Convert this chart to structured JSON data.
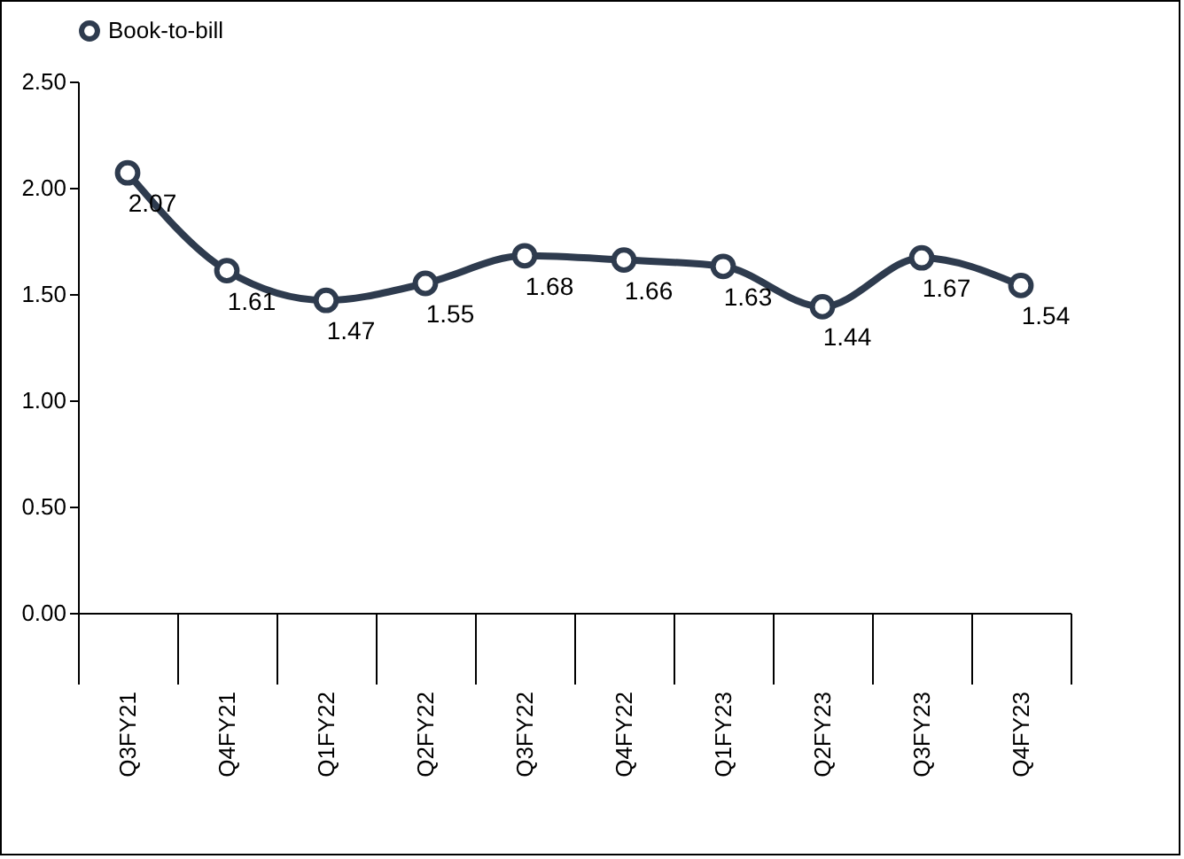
{
  "chart_data": {
    "type": "line",
    "categories": [
      "Q3FY21",
      "Q4FY21",
      "Q1FY22",
      "Q2FY22",
      "Q3FY22",
      "Q4FY22",
      "Q1FY23",
      "Q2FY23",
      "Q3FY23",
      "Q4FY23"
    ],
    "series": [
      {
        "name": "Book-to-bill",
        "color": "#2e3b4e",
        "values": [
          2.07,
          1.61,
          1.47,
          1.55,
          1.68,
          1.66,
          1.63,
          1.44,
          1.67,
          1.54
        ]
      }
    ],
    "ylim": [
      0,
      2.5
    ],
    "yticks": [
      {
        "value": 0,
        "label": "0.00"
      },
      {
        "value": 0.5,
        "label": "0.50"
      },
      {
        "value": 1,
        "label": "1.00"
      },
      {
        "value": 1.5,
        "label": "1.50"
      },
      {
        "value": 2,
        "label": "2.00"
      },
      {
        "value": 2.5,
        "label": "2.50"
      }
    ],
    "data_labels": true,
    "legend": "top",
    "marker": "circle",
    "grid": false
  }
}
